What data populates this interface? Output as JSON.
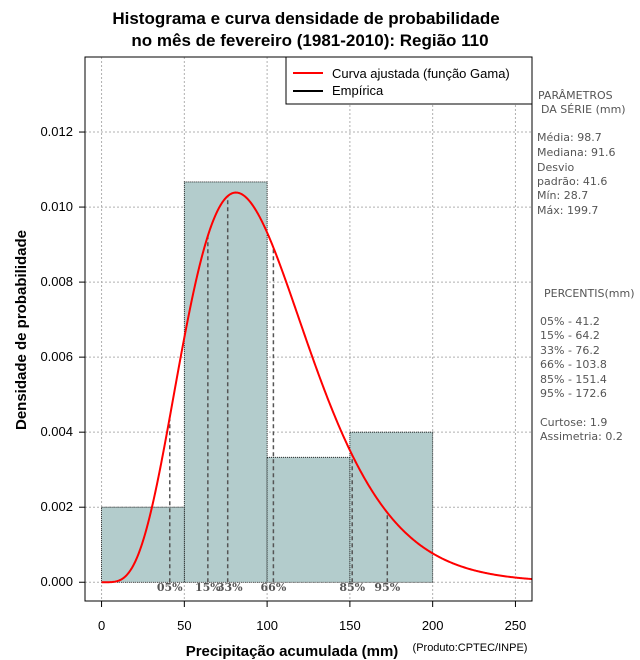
{
  "chart_data": {
    "type": "bar",
    "title_line1": "Histograma e curva densidade de probabilidade",
    "title_line2": "no mês de fevereiro (1981-2010): Região 110",
    "xlabel": "Precipitação acumulada (mm)",
    "ylabel": "Densidade de probabilidade",
    "credit": "(Produto:CPTEC/INPE)",
    "xlim": [
      -10,
      260
    ],
    "ylim": [
      -0.0005,
      0.014
    ],
    "x_ticks": [
      0,
      50,
      100,
      150,
      200,
      250
    ],
    "y_ticks": [
      0.0,
      0.002,
      0.004,
      0.006,
      0.008,
      0.01,
      0.012
    ],
    "y_tick_labels": [
      "0.000",
      "0.002",
      "0.004",
      "0.006",
      "0.008",
      "0.010",
      "0.012"
    ],
    "grid": true,
    "histogram": {
      "bins": [
        [
          0,
          50
        ],
        [
          50,
          100
        ],
        [
          100,
          150
        ],
        [
          150,
          200
        ]
      ],
      "density": [
        0.002,
        0.01067,
        0.00333,
        0.004
      ],
      "fill": "#b3cccc",
      "edge": "#000000"
    },
    "curve": {
      "name": "Curva ajustada (função Gama)",
      "distribution": "gamma",
      "mean": 98.7,
      "variance": 1730.56,
      "color": "#ff0000"
    },
    "legend": {
      "position": "top-right",
      "entries": [
        {
          "label": "Curva ajustada (função Gama)",
          "color": "#ff0000"
        },
        {
          "label": "Empírica",
          "color": "#000000"
        }
      ]
    },
    "percentiles": [
      {
        "label": "05%",
        "value": 41.2
      },
      {
        "label": "15%",
        "value": 64.2
      },
      {
        "label": "33%",
        "value": 76.2
      },
      {
        "label": "66%",
        "value": 103.8
      },
      {
        "label": "85%",
        "value": 151.4
      },
      {
        "label": "95%",
        "value": 172.6
      }
    ]
  },
  "side_panel": {
    "params_title_1": "PARÂMETROS",
    "params_title_2": "DA SÉRIE (mm)",
    "params_lines": [
      "Média:  98.7",
      "Mediana:  91.6",
      "Desvio",
      "padrão:  41.6",
      "Mín:  28.7",
      "Máx:  199.7"
    ],
    "percentis_title": "PERCENTIS(mm)",
    "percentis_lines": [
      "05% -  41.2",
      "15% -  64.2",
      "33% -  76.2",
      "66% -  103.8",
      "85% -  151.4",
      "95% -  172.6"
    ],
    "stats_lines": [
      "Curtose:  1.9",
      "Assimetria:  0.2"
    ]
  }
}
